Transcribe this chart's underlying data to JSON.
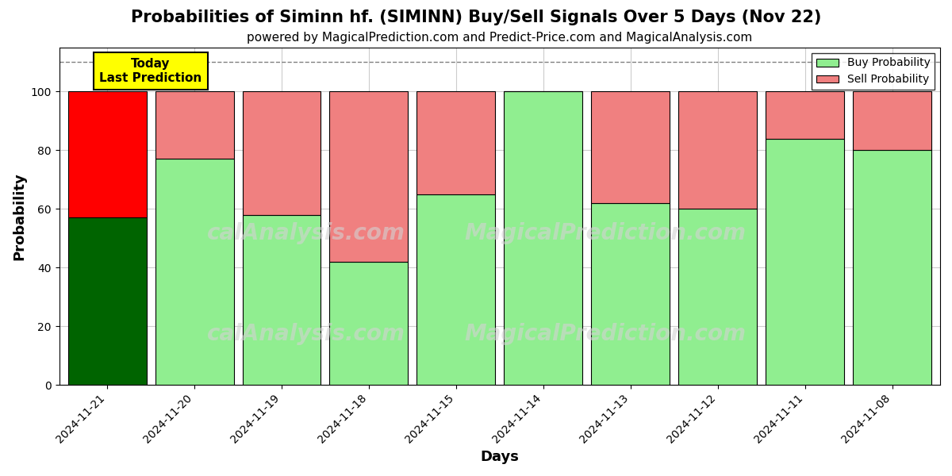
{
  "title": "Probabilities of Siminn hf. (SIMINN) Buy/Sell Signals Over 5 Days (Nov 22)",
  "subtitle": "powered by MagicalPrediction.com and Predict-Price.com and MagicalAnalysis.com",
  "xlabel": "Days",
  "ylabel": "Probability",
  "dates": [
    "2024-11-21",
    "2024-11-20",
    "2024-11-19",
    "2024-11-18",
    "2024-11-15",
    "2024-11-14",
    "2024-11-13",
    "2024-11-12",
    "2024-11-11",
    "2024-11-08"
  ],
  "buy_values": [
    57,
    77,
    58,
    42,
    65,
    100,
    62,
    60,
    84,
    80
  ],
  "sell_values": [
    43,
    23,
    42,
    58,
    35,
    0,
    38,
    40,
    16,
    20
  ],
  "today_buy_color": "#006400",
  "today_sell_color": "#FF0000",
  "buy_color": "#90EE90",
  "sell_color": "#F08080",
  "today_annotation_bg": "#FFFF00",
  "today_annotation_text": "Today\nLast Prediction",
  "ylim": [
    0,
    115
  ],
  "dashed_line_y": 110,
  "legend_buy_label": "Buy Probability",
  "legend_sell_label": "Sell Probability",
  "background_color": "#ffffff",
  "grid_color": "#cccccc",
  "title_fontsize": 15,
  "subtitle_fontsize": 11,
  "axis_label_fontsize": 13,
  "tick_fontsize": 10,
  "bar_width": 0.9
}
